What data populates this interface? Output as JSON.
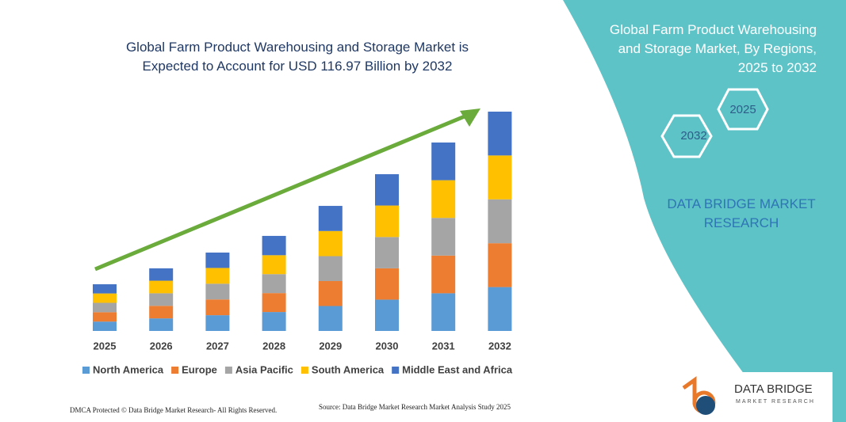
{
  "chart_data": {
    "type": "stacked_bar",
    "title": "Global Farm Product Warehousing and Storage Market is Expected to Account for USD 116.97 Billion by 2032",
    "categories": [
      "2025",
      "2026",
      "2027",
      "2028",
      "2029",
      "2030",
      "2031",
      "2032"
    ],
    "series": [
      {
        "name": "North America",
        "color": "#5b9bd5",
        "values": [
          5.0,
          6.7,
          8.4,
          10.1,
          13.3,
          16.7,
          20.1,
          23.4
        ]
      },
      {
        "name": "Europe",
        "color": "#ed7d31",
        "values": [
          5.0,
          6.7,
          8.4,
          10.1,
          13.3,
          16.7,
          20.1,
          23.4
        ]
      },
      {
        "name": "Asia Pacific",
        "color": "#a5a5a5",
        "values": [
          5.0,
          6.7,
          8.4,
          10.1,
          13.3,
          16.7,
          20.1,
          23.4
        ]
      },
      {
        "name": "South America",
        "color": "#ffc000",
        "values": [
          5.0,
          6.7,
          8.4,
          10.1,
          13.4,
          16.8,
          20.1,
          23.4
        ]
      },
      {
        "name": "Middle East and Africa",
        "color": "#4472c4",
        "values": [
          4.9,
          6.6,
          8.2,
          10.3,
          13.4,
          16.7,
          20.1,
          23.37
        ]
      }
    ],
    "legend": "bottom"
  },
  "panel": {
    "title": "Global Farm Product Warehousing and Storage Market, By Regions, 2025 to 2032",
    "hex_start": "2025",
    "hex_end": "2032",
    "brand": "DATA BRIDGE MARKET RESEARCH"
  },
  "footer": {
    "copyright": "DMCA Protected © Data Bridge Market Research- All Rights Reserved.",
    "source": "Source: Data Bridge Market Research Market Analysis Study 2025",
    "logo_name": "DATA BRIDGE",
    "logo_sub": "MARKET RESEARCH"
  }
}
